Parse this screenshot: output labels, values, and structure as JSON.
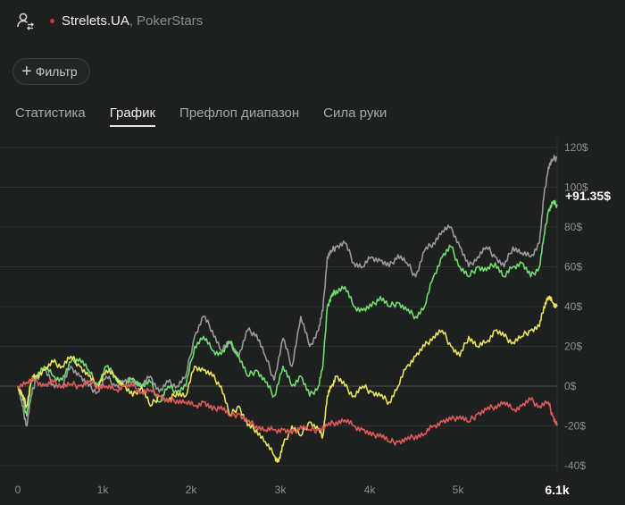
{
  "header": {
    "player": "Strelets.UA",
    "separator": ",",
    "room": "PokerStars",
    "status_color": "#c23a3a",
    "icon": "user-swap-icon"
  },
  "filter": {
    "label": "Фильтр",
    "icon": "plus-icon"
  },
  "tabs": [
    {
      "label": "Статистика",
      "active": false
    },
    {
      "label": "График",
      "active": true
    },
    {
      "label": "Префлоп диапазон",
      "active": false
    },
    {
      "label": "Сила руки",
      "active": false
    }
  ],
  "chart_data": {
    "type": "line",
    "x_unit": "hands",
    "xlim": [
      0,
      6100
    ],
    "ylim": [
      -40,
      120
    ],
    "grid": true,
    "y_ticks": [
      "120$",
      "100$",
      "80$",
      "60$",
      "40$",
      "20$",
      "0$",
      "-20$",
      "-40$"
    ],
    "x_ticks": [
      "0",
      "1k",
      "2k",
      "3k",
      "4k",
      "5k",
      "6.1k"
    ],
    "end_label": "+91.35$",
    "series": [
      {
        "color": "#9a9a9a",
        "x": [
          0,
          50,
          100,
          150,
          200,
          300,
          400,
          500,
          600,
          700,
          800,
          900,
          1000,
          1100,
          1200,
          1300,
          1400,
          1500,
          1600,
          1700,
          1800,
          1900,
          2000,
          2100,
          2200,
          2300,
          2400,
          2500,
          2600,
          2700,
          2800,
          2900,
          3000,
          3100,
          3200,
          3300,
          3400,
          3450,
          3500,
          3550,
          3600,
          3700,
          3800,
          3900,
          4000,
          4100,
          4200,
          4300,
          4400,
          4500,
          4600,
          4700,
          4800,
          4900,
          5000,
          5100,
          5200,
          5300,
          5400,
          5500,
          5600,
          5700,
          5800,
          5900,
          5950,
          6000,
          6050,
          6100
        ],
        "y": [
          0,
          -10,
          -20,
          -5,
          3,
          8,
          1,
          0,
          10,
          5,
          0,
          -3,
          5,
          0,
          2,
          3,
          0,
          5,
          -3,
          2,
          0,
          5,
          25,
          35,
          28,
          18,
          22,
          15,
          28,
          26,
          15,
          3,
          24,
          10,
          35,
          20,
          28,
          38,
          65,
          68,
          70,
          72,
          62,
          60,
          65,
          63,
          60,
          66,
          62,
          55,
          68,
          72,
          78,
          80,
          70,
          60,
          65,
          70,
          65,
          60,
          70,
          67,
          65,
          72,
          95,
          110,
          114,
          115
        ]
      },
      {
        "color": "#6fde6f",
        "x": [
          0,
          50,
          100,
          150,
          200,
          300,
          400,
          500,
          600,
          700,
          800,
          900,
          1000,
          1100,
          1200,
          1300,
          1400,
          1500,
          1600,
          1700,
          1800,
          1900,
          2000,
          2100,
          2200,
          2300,
          2400,
          2500,
          2600,
          2700,
          2800,
          2900,
          3000,
          3100,
          3200,
          3300,
          3400,
          3450,
          3500,
          3550,
          3600,
          3700,
          3800,
          3900,
          4000,
          4100,
          4200,
          4300,
          4400,
          4500,
          4600,
          4700,
          4800,
          4900,
          5000,
          5100,
          5200,
          5300,
          5400,
          5500,
          5600,
          5700,
          5800,
          5900,
          5950,
          6000,
          6050,
          6100
        ],
        "y": [
          0,
          -5,
          -15,
          2,
          5,
          10,
          5,
          3,
          12,
          14,
          8,
          0,
          10,
          5,
          0,
          4,
          0,
          2,
          -8,
          0,
          -3,
          0,
          20,
          25,
          18,
          16,
          22,
          15,
          5,
          8,
          2,
          -5,
          10,
          0,
          5,
          -5,
          0,
          10,
          40,
          45,
          48,
          50,
          40,
          38,
          40,
          45,
          40,
          42,
          38,
          35,
          40,
          55,
          65,
          70,
          60,
          55,
          60,
          58,
          62,
          55,
          60,
          62,
          55,
          60,
          75,
          88,
          92,
          91.35
        ]
      },
      {
        "color": "#e8e25a",
        "x": [
          0,
          50,
          100,
          150,
          200,
          300,
          400,
          500,
          600,
          700,
          800,
          900,
          1000,
          1100,
          1200,
          1300,
          1400,
          1500,
          1600,
          1700,
          1800,
          1900,
          2000,
          2100,
          2200,
          2300,
          2400,
          2500,
          2600,
          2700,
          2800,
          2900,
          2950,
          3000,
          3100,
          3200,
          3300,
          3400,
          3450,
          3500,
          3550,
          3600,
          3700,
          3800,
          3900,
          4000,
          4100,
          4200,
          4300,
          4400,
          4500,
          4600,
          4700,
          4800,
          4900,
          5000,
          5100,
          5200,
          5300,
          5400,
          5500,
          5600,
          5700,
          5800,
          5900,
          5950,
          6000,
          6050,
          6100
        ],
        "y": [
          0,
          -5,
          -10,
          3,
          5,
          8,
          12,
          10,
          15,
          10,
          5,
          0,
          8,
          5,
          0,
          -5,
          0,
          -10,
          -5,
          -8,
          -3,
          -5,
          10,
          8,
          5,
          0,
          -15,
          -10,
          -20,
          -22,
          -28,
          -35,
          -38,
          -30,
          -20,
          -25,
          -18,
          -22,
          -25,
          -5,
          0,
          5,
          0,
          -5,
          0,
          -3,
          -5,
          -8,
          0,
          10,
          15,
          20,
          25,
          28,
          20,
          15,
          25,
          20,
          22,
          28,
          25,
          22,
          25,
          28,
          30,
          40,
          45,
          42,
          40
        ]
      },
      {
        "color": "#e05a5a",
        "x": [
          0,
          100,
          200,
          300,
          400,
          500,
          600,
          700,
          800,
          900,
          1000,
          1100,
          1200,
          1300,
          1400,
          1500,
          1600,
          1700,
          1800,
          1900,
          2000,
          2100,
          2200,
          2300,
          2400,
          2500,
          2600,
          2700,
          2800,
          2900,
          3000,
          3100,
          3200,
          3300,
          3400,
          3500,
          3600,
          3700,
          3800,
          3900,
          4000,
          4100,
          4200,
          4300,
          4400,
          4500,
          4600,
          4700,
          4800,
          4900,
          5000,
          5100,
          5200,
          5300,
          5400,
          5500,
          5600,
          5700,
          5800,
          5900,
          6000,
          6050,
          6100
        ],
        "y": [
          0,
          2,
          3,
          0,
          2,
          0,
          1,
          0,
          2,
          0,
          0,
          -2,
          0,
          0,
          -3,
          -2,
          -5,
          -8,
          -7,
          -8,
          -10,
          -8,
          -12,
          -10,
          -15,
          -14,
          -18,
          -20,
          -22,
          -22,
          -22,
          -24,
          -20,
          -22,
          -22,
          -20,
          -18,
          -17,
          -20,
          -22,
          -25,
          -24,
          -28,
          -28,
          -27,
          -25,
          -24,
          -20,
          -18,
          -17,
          -15,
          -18,
          -14,
          -12,
          -10,
          -8,
          -12,
          -10,
          -7,
          -10,
          -8,
          -15,
          -20
        ]
      }
    ]
  }
}
